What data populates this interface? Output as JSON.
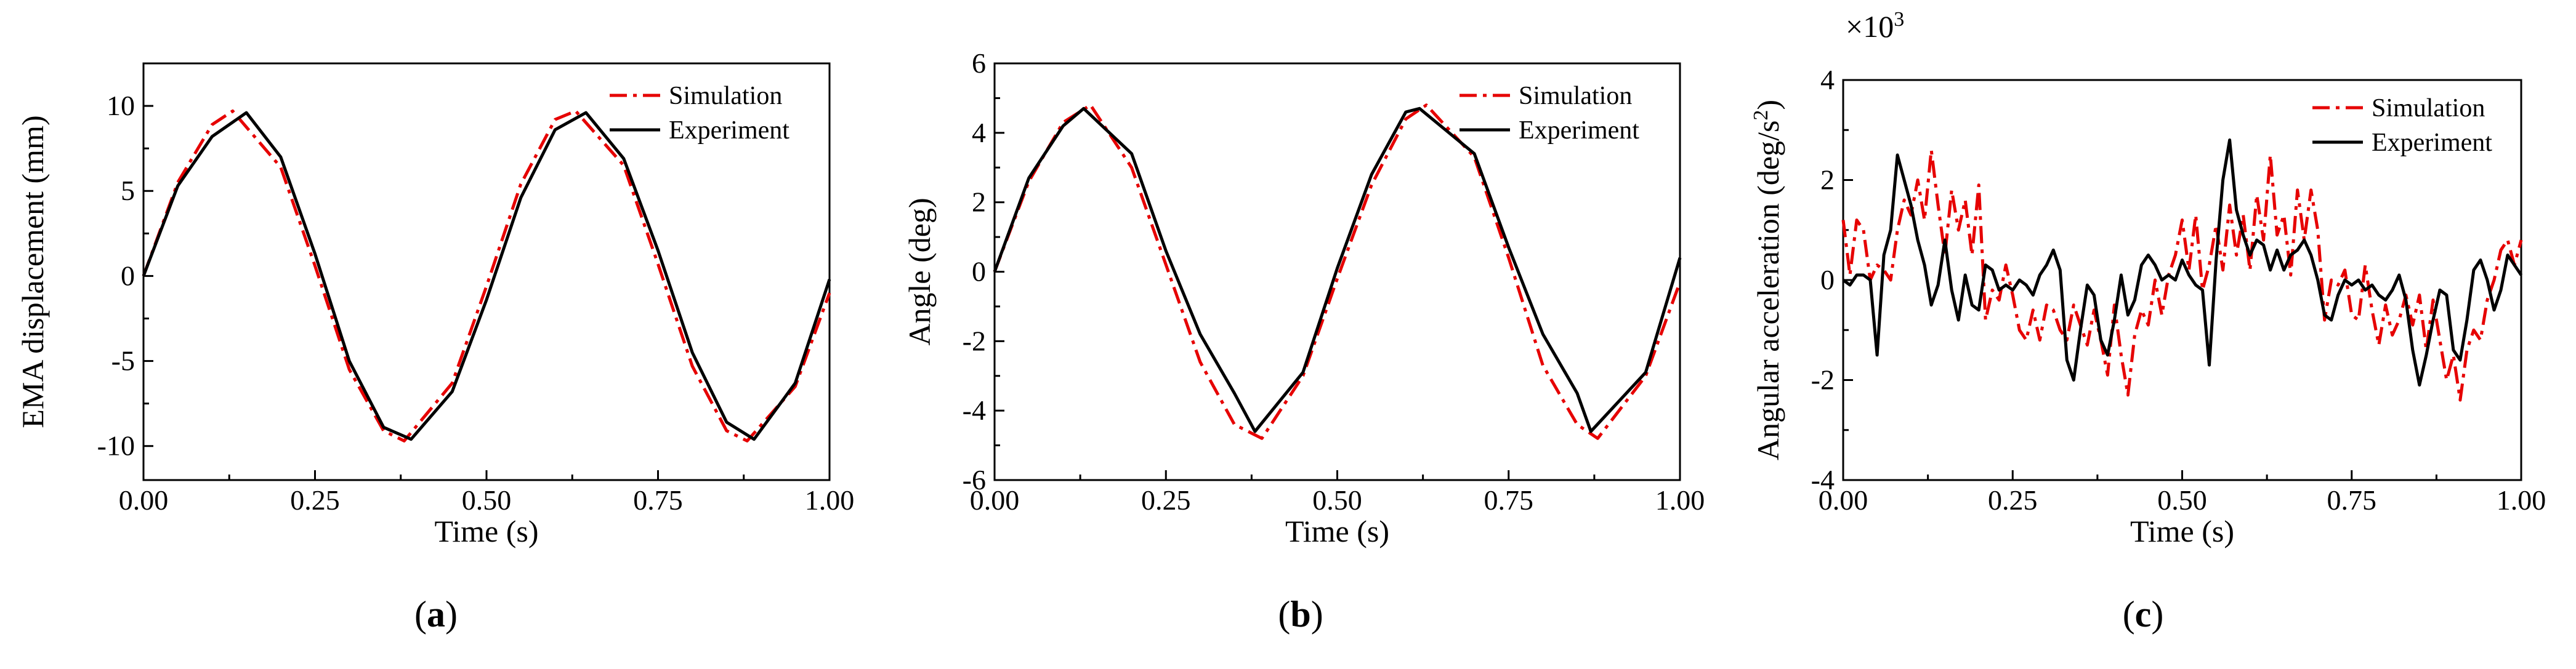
{
  "chart_data": [
    {
      "type": "line",
      "panel_label": "a",
      "xlabel": "Time (s)",
      "ylabel": "EMA displacement (mm)",
      "xlim": [
        0,
        1
      ],
      "ylim": [
        -12,
        12.5
      ],
      "xticks": [
        0,
        0.25,
        0.5,
        0.75,
        1.0
      ],
      "xtick_labels": [
        "0.00",
        "0.25",
        "0.50",
        "0.75",
        "1.00"
      ],
      "yticks": [
        -10,
        -5,
        0,
        5,
        10
      ],
      "ytick_labels": [
        "-10",
        "-5",
        "0",
        "5",
        "10"
      ],
      "legend": {
        "position": "top-right",
        "entries": [
          "Simulation",
          "Experiment"
        ]
      },
      "series": [
        {
          "name": "Simulation",
          "color": "#e60000",
          "style": "dash-dot",
          "x": [
            0,
            0.05,
            0.1,
            0.13,
            0.2,
            0.25,
            0.3,
            0.35,
            0.38,
            0.45,
            0.5,
            0.55,
            0.6,
            0.63,
            0.7,
            0.75,
            0.8,
            0.85,
            0.88,
            0.95,
            1.0
          ],
          "values": [
            0,
            5.5,
            8.9,
            9.7,
            6.4,
            0.6,
            -5.5,
            -9.1,
            -9.7,
            -6.3,
            -0.6,
            5.4,
            9.2,
            9.7,
            6.5,
            0.7,
            -5.3,
            -9.1,
            -9.7,
            -6.5,
            -1.0
          ]
        },
        {
          "name": "Experiment",
          "color": "#000000",
          "style": "solid",
          "x": [
            0,
            0.05,
            0.1,
            0.15,
            0.2,
            0.25,
            0.3,
            0.35,
            0.39,
            0.45,
            0.5,
            0.55,
            0.6,
            0.645,
            0.7,
            0.75,
            0.8,
            0.85,
            0.89,
            0.95,
            1.0
          ],
          "values": [
            0,
            5.3,
            8.2,
            9.6,
            7.0,
            1.3,
            -5.0,
            -8.9,
            -9.6,
            -6.8,
            -1.4,
            4.6,
            8.6,
            9.6,
            6.9,
            1.5,
            -4.5,
            -8.6,
            -9.6,
            -6.3,
            -0.2
          ]
        }
      ]
    },
    {
      "type": "line",
      "panel_label": "b",
      "xlabel": "Time (s)",
      "ylabel": "Angle (deg)",
      "xlim": [
        0,
        1
      ],
      "ylim": [
        -6,
        6
      ],
      "xticks": [
        0,
        0.25,
        0.5,
        0.75,
        1.0
      ],
      "xtick_labels": [
        "0.00",
        "0.25",
        "0.50",
        "0.75",
        "1.00"
      ],
      "yticks": [
        -6,
        -4,
        -2,
        0,
        2,
        4,
        6
      ],
      "ytick_labels": [
        "-6",
        "-4",
        "-2",
        "0",
        "2",
        "4",
        "6"
      ],
      "legend": {
        "position": "top-right",
        "entries": [
          "Simulation",
          "Experiment"
        ]
      },
      "series": [
        {
          "name": "Simulation",
          "color": "#e60000",
          "style": "dash-dot",
          "x": [
            0,
            0.05,
            0.1,
            0.14,
            0.2,
            0.25,
            0.3,
            0.35,
            0.39,
            0.45,
            0.5,
            0.55,
            0.6,
            0.63,
            0.7,
            0.75,
            0.8,
            0.85,
            0.88,
            0.95,
            1.0
          ],
          "values": [
            0,
            2.6,
            4.3,
            4.8,
            3.0,
            0.2,
            -2.6,
            -4.4,
            -4.8,
            -3.0,
            -0.2,
            2.5,
            4.4,
            4.8,
            3.3,
            0.4,
            -2.7,
            -4.4,
            -4.8,
            -3.0,
            -0.3
          ]
        },
        {
          "name": "Experiment",
          "color": "#000000",
          "style": "solid",
          "x": [
            0,
            0.05,
            0.1,
            0.13,
            0.2,
            0.25,
            0.3,
            0.35,
            0.38,
            0.45,
            0.5,
            0.55,
            0.6,
            0.62,
            0.7,
            0.75,
            0.8,
            0.85,
            0.87,
            0.95,
            1.0
          ],
          "values": [
            0,
            2.7,
            4.2,
            4.7,
            3.4,
            0.6,
            -1.8,
            -3.5,
            -4.6,
            -2.9,
            0.1,
            2.8,
            4.6,
            4.7,
            3.4,
            0.7,
            -1.8,
            -3.5,
            -4.6,
            -2.9,
            0.4
          ]
        }
      ]
    },
    {
      "type": "line",
      "panel_label": "c",
      "xlabel": "Time (s)",
      "ylabel": "Angular acceleration (deg/s²)",
      "multiplier_label": "×10³",
      "xlim": [
        0,
        1
      ],
      "ylim": [
        -4,
        4
      ],
      "xticks": [
        0,
        0.25,
        0.5,
        0.75,
        1.0
      ],
      "xtick_labels": [
        "0.00",
        "0.25",
        "0.50",
        "0.75",
        "1.00"
      ],
      "yticks": [
        -4,
        -2,
        0,
        2,
        4
      ],
      "ytick_labels": [
        "-4",
        "-2",
        "0",
        "2",
        "4"
      ],
      "legend": {
        "position": "top-right",
        "entries": [
          "Simulation",
          "Experiment"
        ]
      },
      "series": [
        {
          "name": "Simulation",
          "color": "#e60000",
          "style": "dash-dot",
          "x": [
            0,
            0.01,
            0.02,
            0.03,
            0.04,
            0.05,
            0.06,
            0.07,
            0.08,
            0.09,
            0.1,
            0.11,
            0.12,
            0.13,
            0.14,
            0.15,
            0.16,
            0.17,
            0.18,
            0.19,
            0.2,
            0.21,
            0.22,
            0.23,
            0.24,
            0.25,
            0.26,
            0.27,
            0.28,
            0.29,
            0.3,
            0.31,
            0.32,
            0.33,
            0.34,
            0.35,
            0.36,
            0.37,
            0.38,
            0.39,
            0.4,
            0.41,
            0.42,
            0.43,
            0.44,
            0.45,
            0.46,
            0.47,
            0.48,
            0.49,
            0.5,
            0.51,
            0.52,
            0.53,
            0.54,
            0.55,
            0.56,
            0.57,
            0.58,
            0.59,
            0.6,
            0.61,
            0.62,
            0.63,
            0.64,
            0.65,
            0.66,
            0.67,
            0.68,
            0.69,
            0.7,
            0.71,
            0.72,
            0.73,
            0.74,
            0.75,
            0.76,
            0.77,
            0.78,
            0.79,
            0.8,
            0.81,
            0.82,
            0.83,
            0.84,
            0.85,
            0.86,
            0.87,
            0.88,
            0.89,
            0.9,
            0.91,
            0.92,
            0.93,
            0.94,
            0.95,
            0.96,
            0.97,
            0.98,
            0.99,
            1.0
          ],
          "values": [
            1.2,
            0.1,
            1.2,
            1.0,
            0.0,
            0.3,
            0.2,
            0.0,
            1.0,
            1.6,
            1.3,
            2.0,
            1.2,
            2.6,
            1.5,
            0.5,
            1.8,
            1.0,
            1.6,
            0.5,
            1.9,
            -0.8,
            -0.2,
            -0.4,
            0.3,
            -0.3,
            -1.0,
            -1.2,
            -0.6,
            -1.2,
            -0.5,
            -0.6,
            -1.0,
            -1.2,
            -0.5,
            -0.9,
            -1.3,
            -0.6,
            -1.2,
            -1.9,
            -0.5,
            -1.5,
            -2.3,
            -1.1,
            -0.6,
            -0.9,
            0.0,
            -0.7,
            0.1,
            0.5,
            1.2,
            0.2,
            1.3,
            -0.2,
            0.3,
            1.1,
            0.2,
            1.5,
            0.5,
            1.3,
            0.2,
            1.7,
            0.8,
            2.5,
            0.9,
            1.3,
            0.1,
            1.8,
            0.8,
            1.8,
            1.0,
            -0.8,
            0.0,
            -0.1,
            0.2,
            -0.7,
            -0.8,
            0.3,
            -0.6,
            -1.3,
            -0.5,
            -1.1,
            -0.8,
            -0.3,
            -0.9,
            -0.3,
            -1.4,
            -0.4,
            -1.2,
            -2.0,
            -1.5,
            -2.4,
            -1.4,
            -1.0,
            -1.2,
            -0.4,
            0.0,
            0.6,
            0.8,
            0.3,
            0.8
          ]
        },
        {
          "name": "Experiment",
          "color": "#000000",
          "style": "solid",
          "x": [
            0,
            0.01,
            0.02,
            0.03,
            0.04,
            0.05,
            0.06,
            0.07,
            0.08,
            0.09,
            0.1,
            0.11,
            0.12,
            0.13,
            0.14,
            0.15,
            0.16,
            0.17,
            0.18,
            0.19,
            0.2,
            0.21,
            0.22,
            0.23,
            0.24,
            0.25,
            0.26,
            0.27,
            0.28,
            0.29,
            0.3,
            0.31,
            0.32,
            0.33,
            0.34,
            0.35,
            0.36,
            0.37,
            0.38,
            0.39,
            0.4,
            0.41,
            0.42,
            0.43,
            0.44,
            0.45,
            0.46,
            0.47,
            0.48,
            0.49,
            0.5,
            0.51,
            0.52,
            0.53,
            0.54,
            0.55,
            0.56,
            0.57,
            0.58,
            0.59,
            0.6,
            0.61,
            0.62,
            0.63,
            0.64,
            0.65,
            0.66,
            0.67,
            0.68,
            0.69,
            0.7,
            0.71,
            0.72,
            0.73,
            0.74,
            0.75,
            0.76,
            0.77,
            0.78,
            0.79,
            0.8,
            0.81,
            0.82,
            0.83,
            0.84,
            0.85,
            0.86,
            0.87,
            0.88,
            0.89,
            0.9,
            0.91,
            0.92,
            0.93,
            0.94,
            0.95,
            0.96,
            0.97,
            0.98,
            0.99,
            1.0
          ],
          "values": [
            0.0,
            -0.1,
            0.1,
            0.1,
            0.0,
            -1.5,
            0.5,
            1.0,
            2.5,
            2.0,
            1.5,
            0.8,
            0.3,
            -0.5,
            -0.1,
            0.8,
            -0.2,
            -0.8,
            0.1,
            -0.5,
            -0.6,
            0.3,
            0.2,
            -0.2,
            -0.1,
            -0.2,
            0.0,
            -0.1,
            -0.3,
            0.1,
            0.3,
            0.6,
            0.2,
            -1.6,
            -2.0,
            -1.0,
            -0.1,
            -0.3,
            -1.2,
            -1.5,
            -0.8,
            0.1,
            -0.7,
            -0.4,
            0.3,
            0.5,
            0.3,
            0.0,
            0.1,
            0.0,
            0.4,
            0.1,
            -0.1,
            -0.2,
            -1.7,
            0.4,
            2.0,
            2.8,
            1.4,
            0.9,
            0.5,
            0.8,
            0.7,
            0.2,
            0.6,
            0.2,
            0.5,
            0.6,
            0.8,
            0.5,
            0.0,
            -0.7,
            -0.8,
            -0.3,
            0.0,
            -0.1,
            0.0,
            -0.2,
            -0.1,
            -0.3,
            -0.4,
            -0.2,
            0.1,
            -0.4,
            -1.4,
            -2.1,
            -1.5,
            -0.8,
            -0.2,
            -0.3,
            -1.4,
            -1.6,
            -0.8,
            0.2,
            0.4,
            0.0,
            -0.6,
            -0.2,
            0.5,
            0.3,
            0.1
          ]
        }
      ]
    }
  ]
}
